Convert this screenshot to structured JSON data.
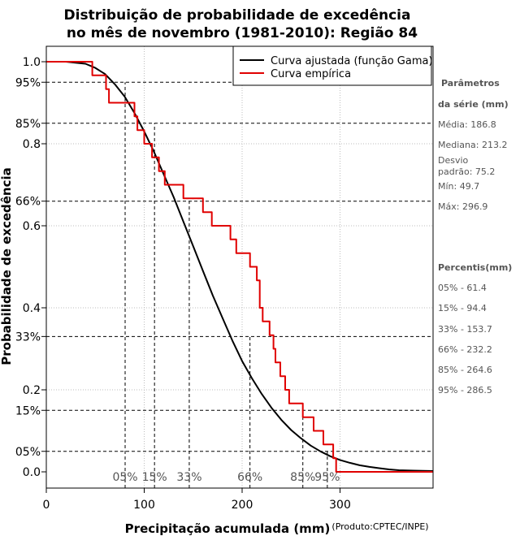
{
  "chart_data": {
    "type": "line",
    "title_line1": "Distribuição de probabilidade de excedência",
    "title_line2": "no mês de novembro (1981-2010): Região 84",
    "xlabel": "Precipitação acumulada (mm)",
    "ylabel": "Probabilidade de excedência",
    "credit": "(Produto:CPTEC/INPE)",
    "xlim": [
      0,
      395
    ],
    "ylim": [
      0,
      1.0
    ],
    "x_ticks": [
      0,
      100,
      200,
      300
    ],
    "y_ticks": [
      {
        "value": 1.0,
        "label": "1.0"
      },
      {
        "value": 0.95,
        "label": "95%"
      },
      {
        "value": 0.85,
        "label": "85%"
      },
      {
        "value": 0.8,
        "label": "0.8"
      },
      {
        "value": 0.66,
        "label": "66%"
      },
      {
        "value": 0.6,
        "label": "0.6"
      },
      {
        "value": 0.4,
        "label": "0.4"
      },
      {
        "value": 0.33,
        "label": "33%"
      },
      {
        "value": 0.2,
        "label": "0.2"
      },
      {
        "value": 0.15,
        "label": "15%"
      },
      {
        "value": 0.05,
        "label": "05%"
      },
      {
        "value": 0.0,
        "label": "0.0"
      }
    ],
    "grid_x": [
      100,
      200,
      300
    ],
    "grid_y": [
      0.2,
      0.4,
      0.6,
      0.8
    ],
    "legend": [
      {
        "label": "Curva ajustada (função Gama)",
        "color": "#000000"
      },
      {
        "label": "Curva empírica",
        "color": "#e00000"
      }
    ],
    "series": [
      {
        "name": "Curva ajustada (função Gama)",
        "color": "#000000",
        "points": [
          [
            0,
            1.0
          ],
          [
            20,
            1.0
          ],
          [
            40,
            0.995
          ],
          [
            50,
            0.985
          ],
          [
            60,
            0.97
          ],
          [
            70,
            0.945
          ],
          [
            80,
            0.915
          ],
          [
            90,
            0.875
          ],
          [
            100,
            0.83
          ],
          [
            110,
            0.78
          ],
          [
            120,
            0.725
          ],
          [
            130,
            0.67
          ],
          [
            140,
            0.61
          ],
          [
            150,
            0.55
          ],
          [
            160,
            0.49
          ],
          [
            170,
            0.43
          ],
          [
            180,
            0.375
          ],
          [
            190,
            0.32
          ],
          [
            200,
            0.27
          ],
          [
            210,
            0.228
          ],
          [
            220,
            0.19
          ],
          [
            230,
            0.156
          ],
          [
            240,
            0.127
          ],
          [
            250,
            0.102
          ],
          [
            260,
            0.082
          ],
          [
            270,
            0.064
          ],
          [
            280,
            0.05
          ],
          [
            290,
            0.038
          ],
          [
            300,
            0.029
          ],
          [
            310,
            0.022
          ],
          [
            320,
            0.016
          ],
          [
            330,
            0.012
          ],
          [
            340,
            0.009
          ],
          [
            350,
            0.006
          ],
          [
            360,
            0.004
          ],
          [
            375,
            0.003
          ],
          [
            395,
            0.002
          ]
        ]
      },
      {
        "name": "Curva empírica",
        "color": "#e00000",
        "points": [
          [
            0,
            1.0
          ],
          [
            47,
            1.0
          ],
          [
            47,
            0.967
          ],
          [
            61,
            0.967
          ],
          [
            61,
            0.933
          ],
          [
            64,
            0.933
          ],
          [
            64,
            0.9
          ],
          [
            90,
            0.9
          ],
          [
            90,
            0.867
          ],
          [
            93,
            0.867
          ],
          [
            93,
            0.833
          ],
          [
            100,
            0.833
          ],
          [
            100,
            0.8
          ],
          [
            108,
            0.8
          ],
          [
            108,
            0.767
          ],
          [
            115,
            0.767
          ],
          [
            115,
            0.733
          ],
          [
            121,
            0.733
          ],
          [
            121,
            0.7
          ],
          [
            140,
            0.7
          ],
          [
            140,
            0.667
          ],
          [
            160,
            0.667
          ],
          [
            160,
            0.633
          ],
          [
            169,
            0.633
          ],
          [
            169,
            0.6
          ],
          [
            188,
            0.6
          ],
          [
            188,
            0.567
          ],
          [
            194,
            0.567
          ],
          [
            194,
            0.533
          ],
          [
            208,
            0.533
          ],
          [
            208,
            0.5
          ],
          [
            215,
            0.5
          ],
          [
            215,
            0.467
          ],
          [
            218,
            0.467
          ],
          [
            218,
            0.4
          ],
          [
            221,
            0.4
          ],
          [
            221,
            0.367
          ],
          [
            228,
            0.367
          ],
          [
            228,
            0.333
          ],
          [
            232,
            0.333
          ],
          [
            232,
            0.3
          ],
          [
            234,
            0.3
          ],
          [
            234,
            0.267
          ],
          [
            239,
            0.267
          ],
          [
            239,
            0.233
          ],
          [
            244,
            0.233
          ],
          [
            244,
            0.2
          ],
          [
            248,
            0.2
          ],
          [
            248,
            0.167
          ],
          [
            262,
            0.167
          ],
          [
            262,
            0.133
          ],
          [
            273,
            0.133
          ],
          [
            273,
            0.1
          ],
          [
            283,
            0.1
          ],
          [
            283,
            0.067
          ],
          [
            293,
            0.067
          ],
          [
            293,
            0.033
          ],
          [
            296,
            0.033
          ],
          [
            296,
            0.0
          ],
          [
            395,
            0.0
          ]
        ]
      }
    ],
    "percentile_markers": [
      {
        "label": "05%",
        "x": 80.5,
        "prob": 0.95
      },
      {
        "label": "15%",
        "x": 110.5,
        "prob": 0.85
      },
      {
        "label": "33%",
        "x": 146,
        "prob": 0.66
      },
      {
        "label": "66%",
        "x": 208,
        "prob": 0.33
      },
      {
        "label": "85%",
        "x": 262,
        "prob": 0.15
      },
      {
        "label": "95%",
        "x": 287,
        "prob": 0.05
      }
    ]
  },
  "sidebar": {
    "params_heading_1": "Parâmetros",
    "params_heading_2": "da série (mm)",
    "mean": "Média: 186.8",
    "median": "Mediana: 213.2",
    "std_1": "Desvio",
    "std_2": "padrão: 75.2",
    "min": "Mín: 49.7",
    "max": "Máx: 296.9",
    "percentis_heading": "Percentis(mm)",
    "percentis": [
      "05% - 61.4",
      "15% - 94.4",
      "33% - 153.7",
      "66% - 232.2",
      "85% - 264.6",
      "95% - 286.5"
    ]
  }
}
